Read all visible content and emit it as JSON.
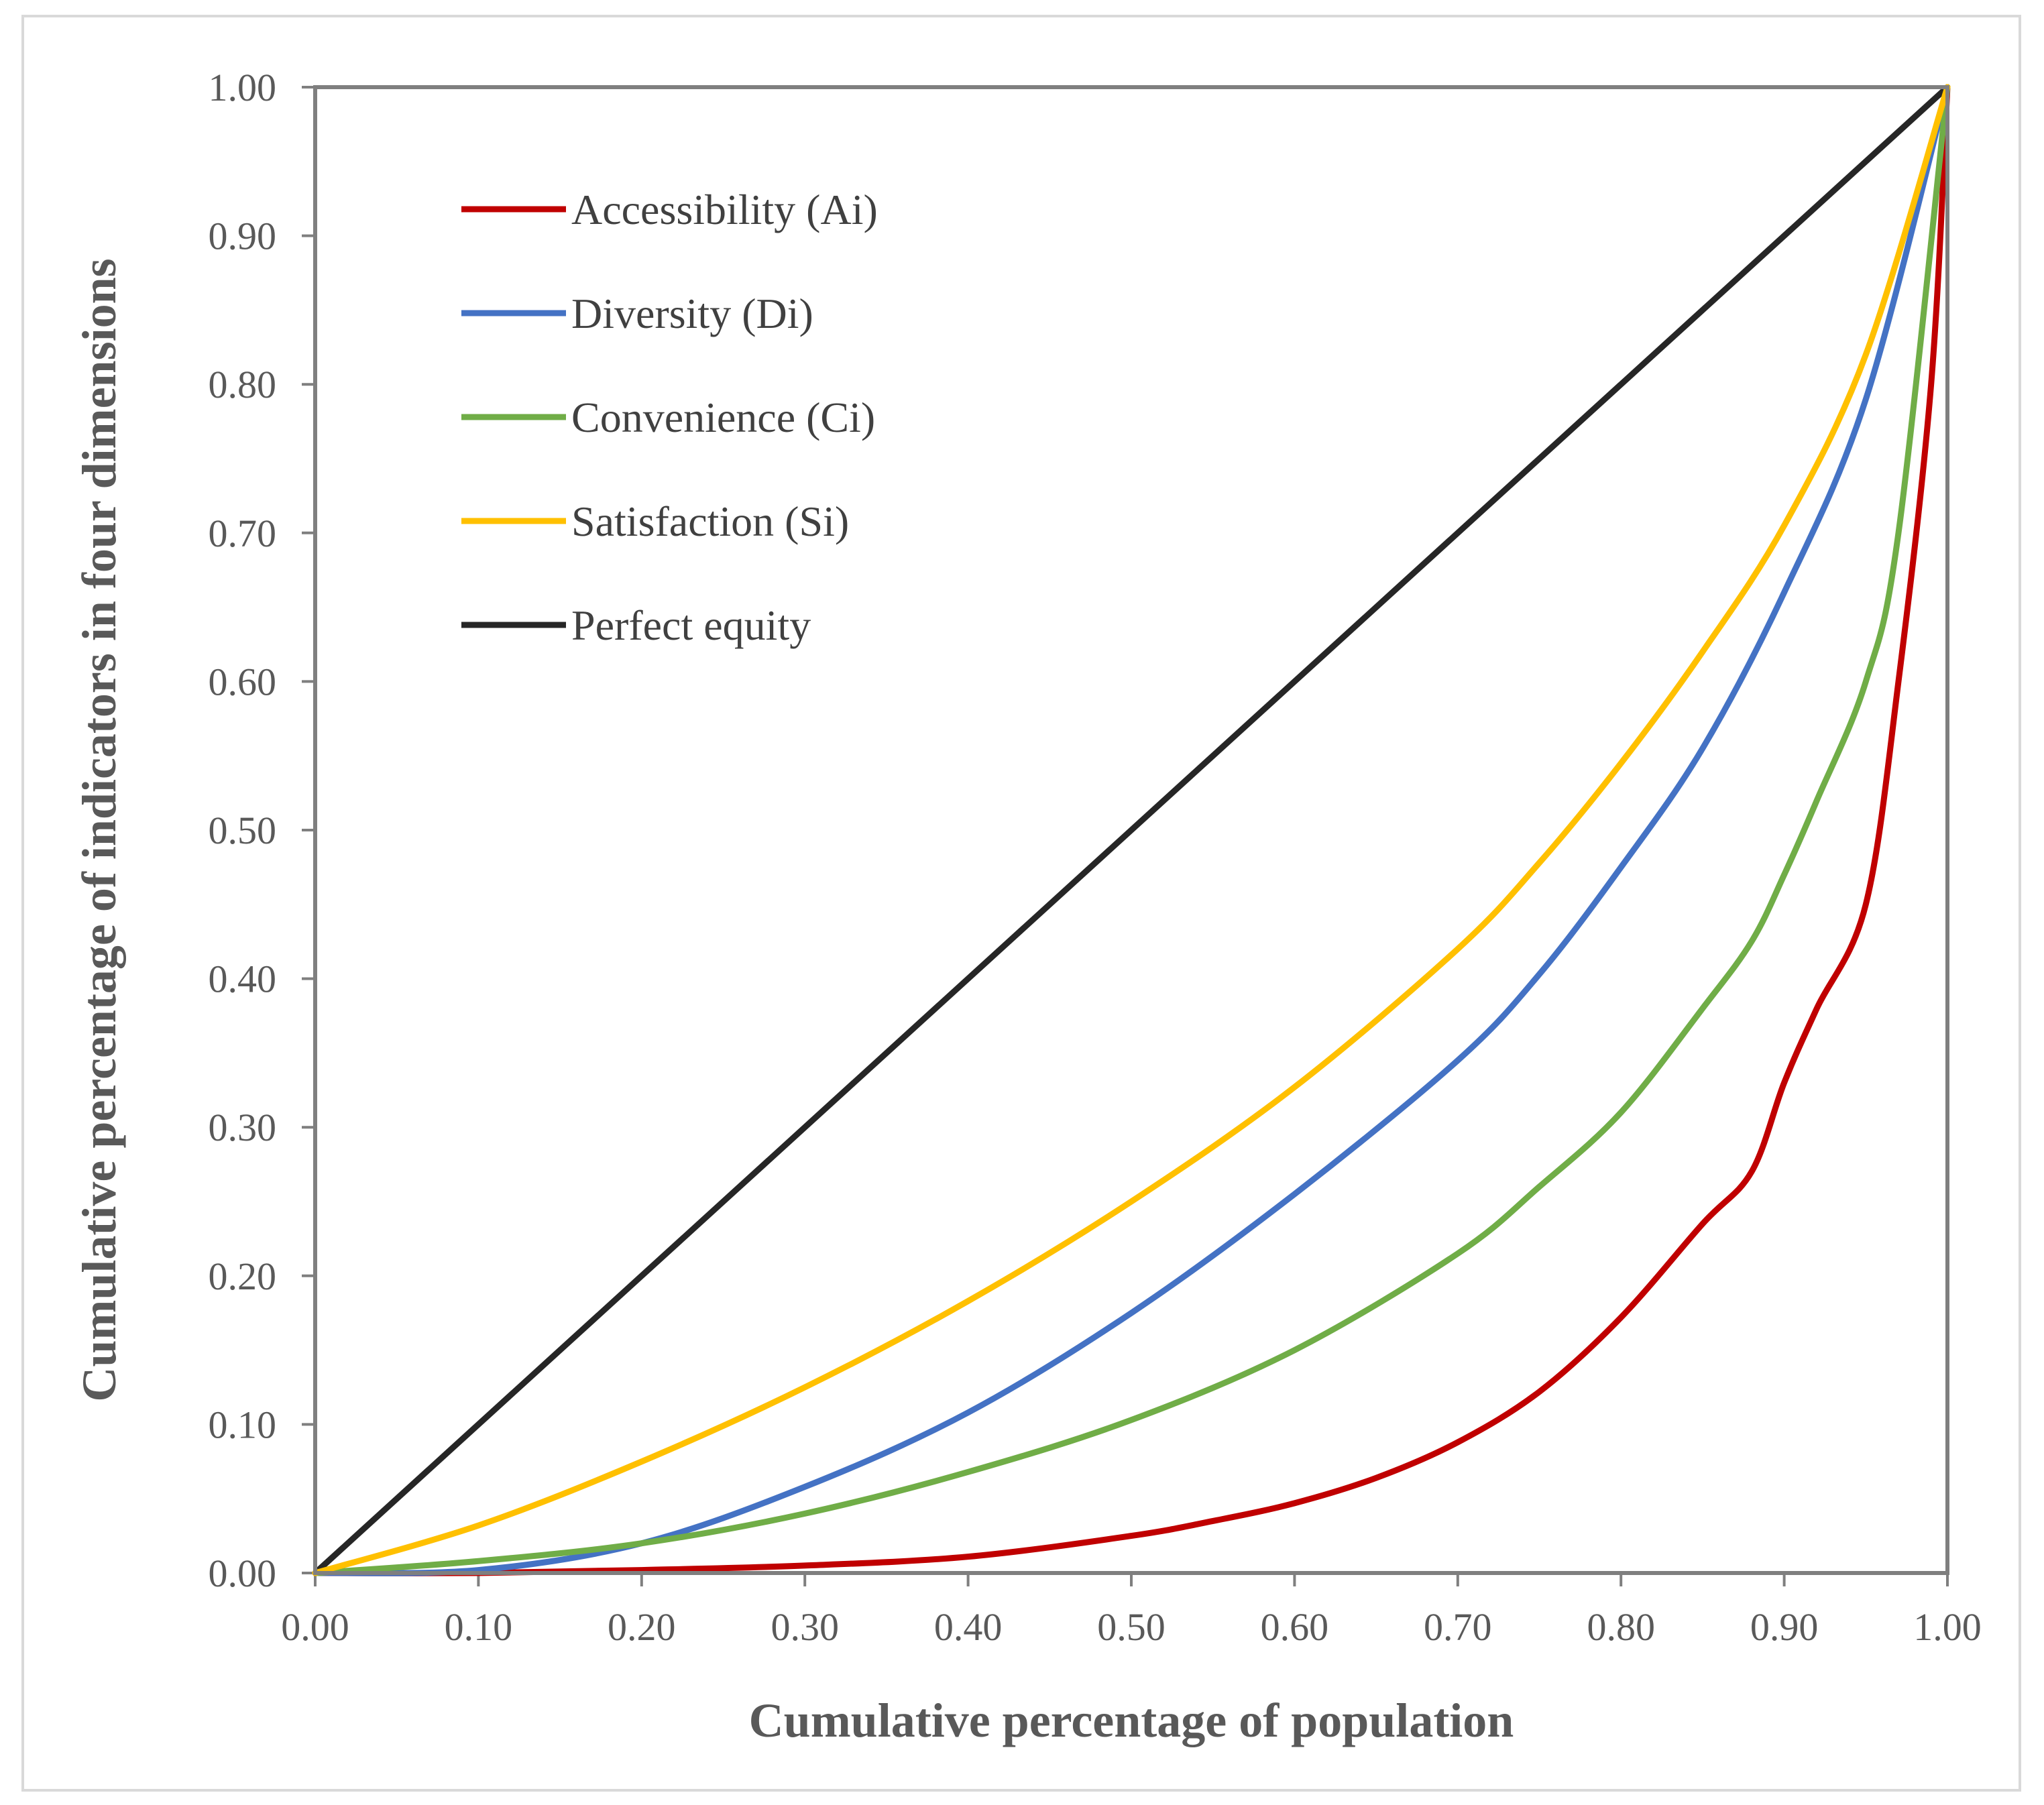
{
  "chart_data": {
    "type": "line",
    "title": "",
    "xlabel": "Cumulative percentage of population",
    "ylabel": "Cumulative percentage of indicators in four dimensions",
    "xlim": [
      0,
      1
    ],
    "ylim": [
      0,
      1
    ],
    "grid": false,
    "legend_position": "top-left",
    "x_ticks": [
      "0.00",
      "0.10",
      "0.20",
      "0.30",
      "0.40",
      "0.50",
      "0.60",
      "0.70",
      "0.80",
      "0.90",
      "1.00"
    ],
    "y_ticks": [
      "0.00",
      "0.10",
      "0.20",
      "0.30",
      "0.40",
      "0.50",
      "0.60",
      "0.70",
      "0.80",
      "0.90",
      "1.00"
    ],
    "series": [
      {
        "name": "Accessibility (Ai)",
        "color": "#c00000",
        "x": [
          0,
          0.1,
          0.2,
          0.3,
          0.4,
          0.5,
          0.55,
          0.6,
          0.65,
          0.7,
          0.75,
          0.8,
          0.85,
          0.88,
          0.9,
          0.92,
          0.95,
          0.97,
          0.99,
          1.0
        ],
        "y": [
          0,
          0.0,
          0.002,
          0.005,
          0.011,
          0.025,
          0.035,
          0.047,
          0.064,
          0.088,
          0.122,
          0.172,
          0.235,
          0.27,
          0.33,
          0.38,
          0.45,
          0.6,
          0.8,
          1.0
        ]
      },
      {
        "name": "Diversity (Di)",
        "color": "#4472c4",
        "x": [
          0,
          0.1,
          0.2,
          0.3,
          0.4,
          0.5,
          0.6,
          0.7,
          0.75,
          0.8,
          0.85,
          0.9,
          0.95,
          1.0
        ],
        "y": [
          0,
          0.002,
          0.02,
          0.058,
          0.108,
          0.175,
          0.255,
          0.345,
          0.403,
          0.475,
          0.555,
          0.66,
          0.79,
          1.0
        ]
      },
      {
        "name": "Convenience (Ci)",
        "color": "#70ad47",
        "x": [
          0,
          0.1,
          0.2,
          0.3,
          0.4,
          0.5,
          0.6,
          0.7,
          0.75,
          0.8,
          0.85,
          0.88,
          0.9,
          0.92,
          0.95,
          0.97,
          1.0
        ],
        "y": [
          0,
          0.008,
          0.02,
          0.04,
          0.068,
          0.103,
          0.15,
          0.215,
          0.26,
          0.31,
          0.38,
          0.425,
          0.47,
          0.52,
          0.6,
          0.7,
          1.0
        ]
      },
      {
        "name": "Satisfaction (Si)",
        "color": "#ffc000",
        "x": [
          0,
          0.1,
          0.2,
          0.3,
          0.4,
          0.5,
          0.6,
          0.7,
          0.75,
          0.8,
          0.85,
          0.9,
          0.95,
          1.0
        ],
        "y": [
          0,
          0.032,
          0.075,
          0.125,
          0.183,
          0.25,
          0.327,
          0.42,
          0.478,
          0.545,
          0.62,
          0.705,
          0.82,
          1.0
        ]
      },
      {
        "name": "Perfect equity",
        "color": "#262626",
        "x": [
          0,
          1.0
        ],
        "y": [
          0,
          1.0
        ]
      }
    ]
  }
}
